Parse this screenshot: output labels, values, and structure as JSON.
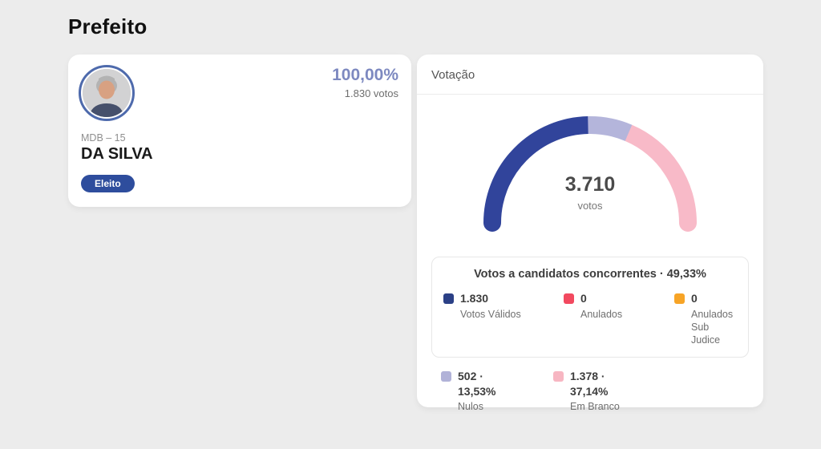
{
  "page": {
    "title": "Prefeito"
  },
  "candidate_card": {
    "percent": "100,00%",
    "votes": "1.830 votos",
    "party": "MDB – 15",
    "name": "DA SILVA",
    "status_badge": "Eleito"
  },
  "votacao_card": {
    "header": "Votação"
  },
  "chart_data": {
    "type": "pie",
    "variant": "half-donut-gauge",
    "title": "Votação",
    "center_value": "3.710",
    "center_label": "votos",
    "total_votes": 3710,
    "legend_position": "below",
    "segments": [
      {
        "label": "Votos Válidos",
        "value": 1830,
        "pct": 49.33,
        "color": "#31449b"
      },
      {
        "label": "Nulos",
        "value": 502,
        "pct": 13.53,
        "color": "#b4b5db"
      },
      {
        "label": "Em Branco",
        "value": 1378,
        "pct": 37.14,
        "color": "#f8bac8"
      }
    ]
  },
  "legend_box": {
    "title": "Votos a candidatos concorrentes · 49,33%",
    "items": [
      {
        "value": "1.830",
        "label": "Votos Válidos",
        "color": "#2b4086"
      },
      {
        "value": "0",
        "label": "Anulados",
        "color": "#f2495f"
      },
      {
        "value": "0",
        "label": "Anulados Sub Judice",
        "color": "#f7a426"
      }
    ]
  },
  "legend_row2": {
    "items": [
      {
        "value_line1": "502 ·",
        "value_line2": "13,53%",
        "label": "Nulos",
        "color": "#b1b2d8"
      },
      {
        "value_line1": "1.378 ·",
        "value_line2": "37,14%",
        "label": "Em Branco",
        "color": "#f7b6c2"
      }
    ]
  }
}
